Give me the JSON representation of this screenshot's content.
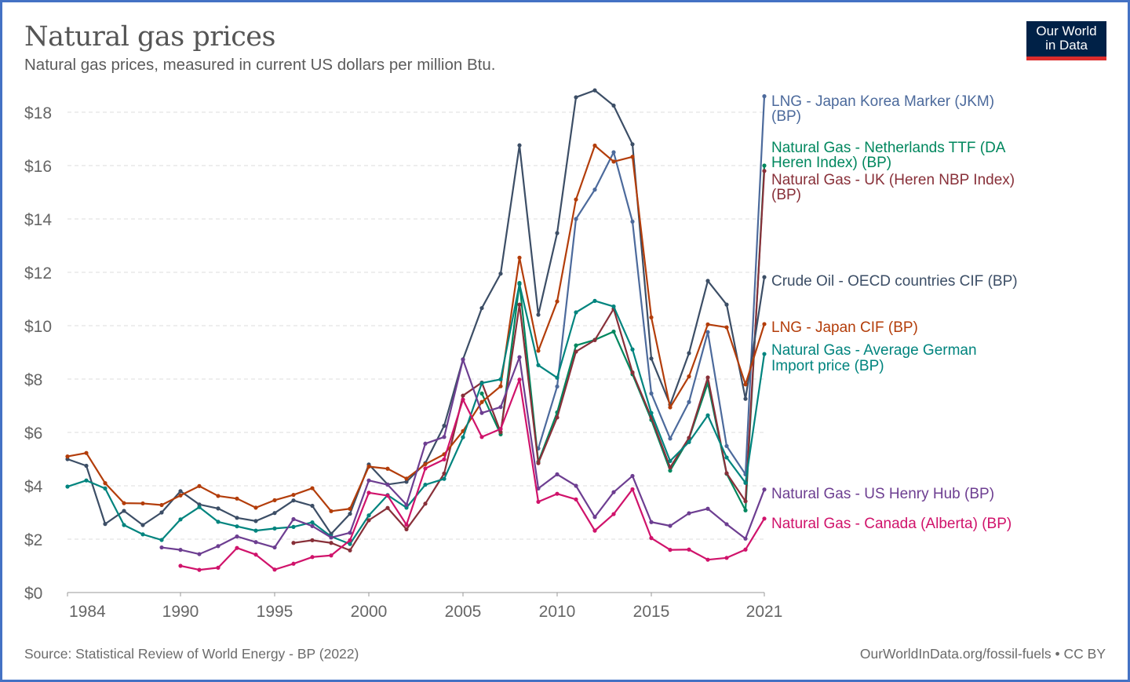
{
  "header": {
    "title": "Natural gas prices",
    "subtitle": "Natural gas prices, measured in current US dollars per million Btu.",
    "logo_text": [
      "Our World",
      "in Data"
    ]
  },
  "footer": {
    "source": "Source: Statistical Review of World Energy - BP (2022)",
    "credit": "OurWorldInData.org/fossil-fuels • CC BY"
  },
  "chart_data": {
    "type": "line",
    "title": "Natural gas prices",
    "subtitle": "Natural gas prices, measured in current US dollars per million Btu.",
    "xlim": [
      1984,
      2021
    ],
    "ylim": [
      0,
      18
    ],
    "x_ticks": [
      "1984",
      "1990",
      "1995",
      "2000",
      "2005",
      "2010",
      "2015",
      "2021"
    ],
    "x_tick_values": [
      1984,
      1990,
      1995,
      2000,
      2005,
      2010,
      2015,
      2021
    ],
    "y_ticks": [
      "$0",
      "$2",
      "$4",
      "$6",
      "$8",
      "$10",
      "$12",
      "$14",
      "$16",
      "$18"
    ],
    "y_tick_values": [
      0,
      2,
      4,
      6,
      8,
      10,
      12,
      14,
      16,
      18
    ],
    "grid": "horizontal dashed",
    "legend": "right, inline labels at line ends",
    "series": [
      {
        "name": "LNG - Japan Korea Marker (JKM) (BP)",
        "label_lines": [
          "LNG - Japan Korea Marker (JKM)",
          "(BP)"
        ],
        "color": "#4c6a9c",
        "start": 2009,
        "values": [
          5.4,
          7.72,
          14.0,
          15.1,
          16.5,
          13.9,
          7.46,
          5.77,
          7.14,
          9.76,
          5.49,
          4.43,
          18.6
        ]
      },
      {
        "name": "Natural Gas - Netherlands TTF (DA Heren Index) (BP)",
        "label_lines": [
          "Natural Gas - Netherlands TTF (DA",
          "Heren Index) (BP)"
        ],
        "color": "#00875e",
        "start": 2006,
        "values": [
          7.46,
          5.93,
          11.6,
          4.9,
          6.75,
          9.26,
          9.47,
          9.78,
          8.18,
          6.47,
          4.57,
          5.77,
          7.85,
          4.45,
          3.08,
          16.0
        ]
      },
      {
        "name": "Natural Gas - UK (Heren NBP Index) (BP)",
        "label_lines": [
          "Natural Gas - UK (Heren NBP Index)",
          "(BP)"
        ],
        "color": "#883039",
        "start": 1996,
        "values": [
          1.86,
          1.96,
          1.86,
          1.58,
          2.71,
          3.17,
          2.37,
          3.33,
          4.46,
          7.38,
          7.87,
          6.01,
          10.79,
          4.85,
          6.56,
          9.03,
          9.46,
          10.63,
          8.25,
          6.56,
          4.69,
          5.8,
          8.06,
          4.47,
          3.42,
          15.8
        ]
      },
      {
        "name": "Crude Oil - OECD countries CIF (BP)",
        "label_lines": [
          "Crude Oil - OECD countries CIF (BP)"
        ],
        "color": "#3c4e66",
        "start": 1984,
        "values": [
          5.0,
          4.75,
          2.57,
          3.06,
          2.53,
          3.0,
          3.8,
          3.3,
          3.15,
          2.8,
          2.68,
          2.98,
          3.45,
          3.25,
          2.2,
          2.95,
          4.8,
          4.05,
          4.15,
          4.85,
          6.25,
          8.74,
          10.66,
          11.95,
          16.76,
          10.41,
          13.47,
          18.56,
          18.82,
          18.25,
          16.8,
          8.77,
          7.04,
          8.97,
          11.68,
          10.79,
          7.26,
          11.82
        ]
      },
      {
        "name": "LNG - Japan CIF (BP)",
        "label_lines": [
          "LNG - Japan CIF (BP)"
        ],
        "color": "#b33d0a",
        "start": 1984,
        "values": [
          5.1,
          5.23,
          4.1,
          3.35,
          3.34,
          3.28,
          3.64,
          3.99,
          3.62,
          3.52,
          3.18,
          3.46,
          3.66,
          3.91,
          3.05,
          3.14,
          4.72,
          4.64,
          4.27,
          4.81,
          5.18,
          6.05,
          7.14,
          7.73,
          12.55,
          9.06,
          10.91,
          14.73,
          16.75,
          16.15,
          16.33,
          10.31,
          6.94,
          8.1,
          10.05,
          9.94,
          7.8,
          10.06
        ]
      },
      {
        "name": "Natural Gas - Average German Import price (BP)",
        "label_lines": [
          "Natural Gas - Average German",
          "Import price (BP)"
        ],
        "color": "#00847e",
        "start": 1984,
        "values": [
          3.97,
          4.2,
          3.9,
          2.53,
          2.18,
          1.97,
          2.74,
          3.2,
          2.65,
          2.48,
          2.32,
          2.4,
          2.46,
          2.63,
          2.1,
          1.82,
          2.89,
          3.65,
          3.18,
          4.04,
          4.26,
          5.82,
          7.85,
          7.99,
          11.56,
          8.52,
          8.05,
          10.5,
          10.93,
          10.72,
          9.11,
          6.73,
          4.93,
          5.64,
          6.64,
          5.06,
          4.11,
          8.94
        ]
      },
      {
        "name": "Natural Gas - US Henry Hub (BP)",
        "label_lines": [
          "Natural Gas - US Henry Hub (BP)"
        ],
        "color": "#6d3e91",
        "start": 1989,
        "values": [
          1.69,
          1.6,
          1.44,
          1.74,
          2.1,
          1.89,
          1.69,
          2.75,
          2.49,
          2.06,
          2.24,
          4.2,
          4.04,
          3.29,
          5.58,
          5.83,
          8.73,
          6.73,
          6.95,
          8.82,
          3.9,
          4.43,
          4.0,
          2.83,
          3.76,
          4.37,
          2.64,
          2.5,
          2.97,
          3.14,
          2.56,
          2.02,
          3.86
        ]
      },
      {
        "name": "Natural Gas - Canada (Alberta) (BP)",
        "label_lines": [
          "Natural Gas - Canada (Alberta) (BP)"
        ],
        "color": "#d0136b",
        "start": 1990,
        "values": [
          1.0,
          0.85,
          0.93,
          1.67,
          1.42,
          0.86,
          1.08,
          1.33,
          1.39,
          1.96,
          3.74,
          3.63,
          2.54,
          4.65,
          4.99,
          7.23,
          5.83,
          6.13,
          7.98,
          3.4,
          3.7,
          3.49,
          2.32,
          2.94,
          3.87,
          2.04,
          1.6,
          1.61,
          1.23,
          1.3,
          1.61,
          2.77
        ]
      }
    ]
  }
}
